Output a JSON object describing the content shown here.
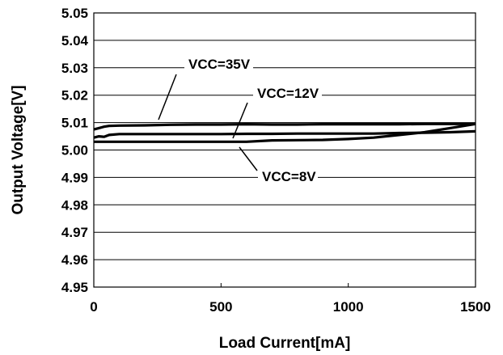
{
  "chart_data": {
    "type": "line",
    "title": "",
    "xlabel": "Load Current[mA]",
    "ylabel": "Output Voltage[V]",
    "xlim": [
      0,
      1500
    ],
    "ylim": [
      4.95,
      5.05
    ],
    "xticks": [
      "0",
      "500",
      "1000",
      "1500"
    ],
    "yticks": [
      "4.95",
      "4.96",
      "4.97",
      "4.98",
      "4.99",
      "5.00",
      "5.01",
      "5.02",
      "5.03",
      "5.04",
      "5.05"
    ],
    "grid": "horizontal",
    "legend": "none",
    "series": [
      {
        "name": "VCC=35V",
        "x": [
          0,
          20,
          40,
          60,
          100,
          200,
          300,
          400,
          500,
          600,
          700,
          800,
          900,
          1000,
          1100,
          1200,
          1300,
          1400,
          1500
        ],
        "y": [
          5.0075,
          5.008,
          5.0085,
          5.0088,
          5.0089,
          5.009,
          5.0092,
          5.0093,
          5.0093,
          5.0094,
          5.0093,
          5.0093,
          5.0094,
          5.0094,
          5.0094,
          5.0094,
          5.0095,
          5.0095,
          5.0095
        ]
      },
      {
        "name": "VCC=12V",
        "x": [
          0,
          20,
          40,
          60,
          100,
          200,
          300,
          400,
          500,
          600,
          700,
          800,
          900,
          1000,
          1100,
          1200,
          1300,
          1400,
          1500
        ],
        "y": [
          5.0045,
          5.005,
          5.0048,
          5.0055,
          5.0058,
          5.0058,
          5.0058,
          5.0058,
          5.0058,
          5.0059,
          5.0059,
          5.006,
          5.006,
          5.006,
          5.006,
          5.0062,
          5.0063,
          5.0065,
          5.0068
        ]
      },
      {
        "name": "VCC=8V",
        "x": [
          0,
          100,
          200,
          300,
          400,
          500,
          600,
          700,
          800,
          900,
          1000,
          1100,
          1200,
          1300,
          1400,
          1500
        ],
        "y": [
          5.003,
          5.003,
          5.003,
          5.003,
          5.003,
          5.003,
          5.003,
          5.0035,
          5.0036,
          5.0037,
          5.004,
          5.0045,
          5.0055,
          5.0065,
          5.008,
          5.0095
        ]
      }
    ],
    "annotations": [
      {
        "text": "VCC=35V",
        "series": 0
      },
      {
        "text": "VCC=12V",
        "series": 1
      },
      {
        "text": "VCC=8V",
        "series": 2
      }
    ]
  }
}
